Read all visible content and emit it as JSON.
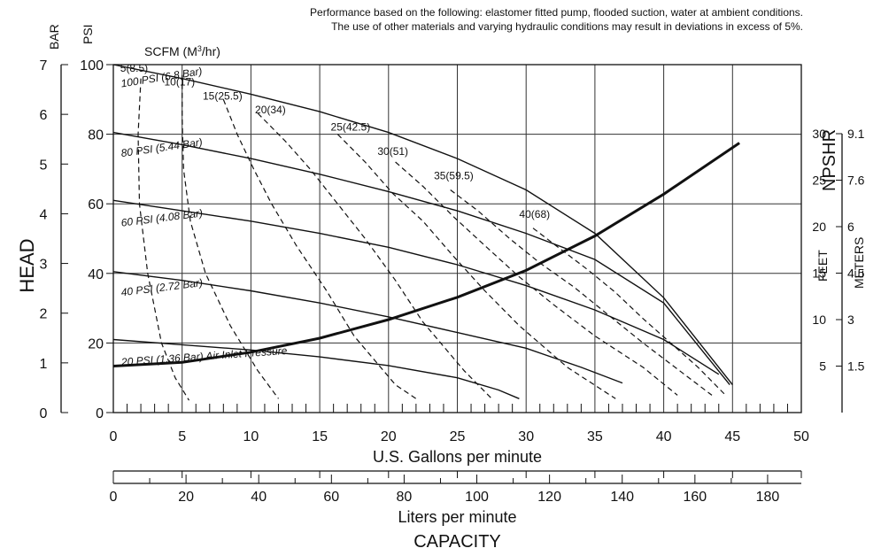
{
  "chart_data": {
    "type": "line",
    "notes": [
      "Performance based on the following: elastomer fitted pump, flooded suction, water at ambient conditions.",
      "The use of other materials and varying hydraulic conditions may result in deviations in excess of 5%."
    ],
    "x_axis": {
      "label": "U.S. Gallons per minute",
      "range": [
        0,
        50
      ],
      "ticks": [
        0,
        5,
        10,
        15,
        20,
        25,
        30,
        35,
        40,
        45,
        50
      ]
    },
    "x2_axis": {
      "label": "Liters per minute",
      "range": [
        0,
        189.27
      ],
      "ticks": [
        0,
        20,
        40,
        60,
        80,
        100,
        120,
        140,
        160,
        180
      ]
    },
    "capacity_label": "CAPACITY",
    "y_axis": {
      "label": "HEAD",
      "psi_label": "PSI",
      "bar_label": "BAR",
      "range": [
        0,
        100
      ],
      "psi_ticks": [
        0,
        20,
        40,
        60,
        80,
        100
      ],
      "bar_ticks": [
        0,
        1,
        2,
        3,
        4,
        5,
        6,
        7
      ]
    },
    "npshr_axis": {
      "label": "NPSHR",
      "feet_label": "FEET",
      "meters_label": "METERS",
      "feet_ticks": [
        "30",
        "25",
        "20",
        "15",
        "10",
        "5"
      ],
      "meter_ticks": [
        "9.1",
        "7.6",
        "6",
        "4.5",
        "3",
        "1.5"
      ]
    },
    "scfm_label": "SCFM (M",
    "scfm_label_sup": "3",
    "scfm_label_tail": "/hr)",
    "grid": true,
    "pressure_curves": [
      {
        "name": "100 PSI (6.8 Bar)",
        "points": [
          [
            0,
            100
          ],
          [
            5,
            96
          ],
          [
            10,
            91.5
          ],
          [
            15,
            86.5
          ],
          [
            20,
            80.5
          ],
          [
            25,
            73
          ],
          [
            30,
            64
          ],
          [
            35,
            51.5
          ],
          [
            40,
            33
          ],
          [
            45,
            8
          ]
        ]
      },
      {
        "name": "80 PSI (5.44 Bar)",
        "points": [
          [
            0,
            80.5
          ],
          [
            5,
            77
          ],
          [
            10,
            73
          ],
          [
            15,
            68.5
          ],
          [
            20,
            63.5
          ],
          [
            25,
            58
          ],
          [
            30,
            51.5
          ],
          [
            35,
            44
          ],
          [
            40,
            31.5
          ],
          [
            44.8,
            8
          ]
        ]
      },
      {
        "name": "60 PSI (4.08 Bar)",
        "points": [
          [
            0,
            61
          ],
          [
            5,
            58
          ],
          [
            10,
            55
          ],
          [
            15,
            51.5
          ],
          [
            20,
            47.5
          ],
          [
            25,
            42.5
          ],
          [
            30,
            36.5
          ],
          [
            35,
            29.5
          ],
          [
            40,
            21
          ],
          [
            44,
            11
          ]
        ]
      },
      {
        "name": "40 PSI (2.72 Bar)",
        "points": [
          [
            0,
            40.5
          ],
          [
            5,
            38
          ],
          [
            10,
            35
          ],
          [
            15,
            31.5
          ],
          [
            20,
            27.5
          ],
          [
            25,
            23
          ],
          [
            30,
            18.5
          ],
          [
            34,
            13
          ],
          [
            37,
            8.5
          ]
        ]
      },
      {
        "name": "20 PSI (1.36 Bar) Air Inlet Pressure",
        "points": [
          [
            0,
            21
          ],
          [
            5,
            19.5
          ],
          [
            10,
            18
          ],
          [
            15,
            16
          ],
          [
            20,
            13.5
          ],
          [
            25,
            10
          ],
          [
            28,
            6.5
          ],
          [
            29.5,
            4
          ]
        ]
      }
    ],
    "scfm_curves": [
      {
        "name": "5(8.5)",
        "points": [
          [
            2.0,
            96
          ],
          [
            1.8,
            80
          ],
          [
            1.9,
            60
          ],
          [
            2.5,
            40
          ],
          [
            3.5,
            20
          ],
          [
            4.5,
            10
          ],
          [
            5.5,
            3.5
          ]
        ]
      },
      {
        "name": "10(17)",
        "points": [
          [
            5.0,
            97
          ],
          [
            5.0,
            85
          ],
          [
            5.1,
            70
          ],
          [
            5.6,
            55
          ],
          [
            6.7,
            40
          ],
          [
            8.5,
            25
          ],
          [
            10.5,
            12
          ],
          [
            12,
            4
          ]
        ]
      },
      {
        "name": "15(25.5)",
        "points": [
          [
            8.0,
            90
          ],
          [
            9.0,
            80
          ],
          [
            10.2,
            70
          ],
          [
            11.5,
            60
          ],
          [
            13.3,
            48
          ],
          [
            15.5,
            35
          ],
          [
            17.5,
            22
          ],
          [
            20.5,
            8
          ],
          [
            22,
            4
          ]
        ]
      },
      {
        "name": "20(34)",
        "points": [
          [
            10.5,
            86
          ],
          [
            12.5,
            78
          ],
          [
            14.3,
            70
          ],
          [
            16.3,
            60
          ],
          [
            18.3,
            50
          ],
          [
            20.5,
            38
          ],
          [
            22.5,
            26
          ],
          [
            25.5,
            12
          ],
          [
            27.5,
            4
          ]
        ]
      },
      {
        "name": "25(42.5)",
        "points": [
          [
            16.3,
            80
          ],
          [
            18.3,
            72
          ],
          [
            20.3,
            63
          ],
          [
            22.5,
            55
          ],
          [
            24.7,
            45
          ],
          [
            27,
            35
          ],
          [
            29.5,
            25
          ],
          [
            33,
            13
          ],
          [
            36.5,
            4
          ]
        ]
      },
      {
        "name": "30(51)",
        "points": [
          [
            20.5,
            72
          ],
          [
            22.5,
            65
          ],
          [
            24.8,
            56
          ],
          [
            27,
            48
          ],
          [
            29.5,
            39
          ],
          [
            32,
            31
          ],
          [
            35,
            22
          ],
          [
            38.5,
            13
          ],
          [
            41,
            5
          ]
        ]
      },
      {
        "name": "35(59.5)",
        "points": [
          [
            24.5,
            64
          ],
          [
            26.5,
            58
          ],
          [
            28.8,
            50
          ],
          [
            31,
            43
          ],
          [
            33.5,
            36
          ],
          [
            36,
            28
          ],
          [
            38.5,
            20
          ],
          [
            41.5,
            11
          ],
          [
            43.5,
            5
          ]
        ]
      },
      {
        "name": "40(68)",
        "points": [
          [
            30.5,
            53
          ],
          [
            32.5,
            47
          ],
          [
            34.5,
            41
          ],
          [
            36.5,
            34.5
          ],
          [
            38.5,
            27
          ],
          [
            40.5,
            20
          ],
          [
            42.5,
            13
          ],
          [
            44.5,
            5
          ]
        ]
      }
    ],
    "npshr_curve": {
      "name": "NPSHR",
      "points": [
        [
          0,
          5
        ],
        [
          5,
          5.4
        ],
        [
          10,
          6.5
        ],
        [
          15,
          8
        ],
        [
          20,
          10
        ],
        [
          25,
          12.4
        ],
        [
          30,
          15.3
        ],
        [
          35,
          19
        ],
        [
          40,
          23.5
        ],
        [
          45.5,
          29
        ]
      ]
    },
    "scfm_label_positions": [
      [
        0.5,
        98
      ],
      [
        3.7,
        94
      ],
      [
        6.5,
        90
      ],
      [
        10.3,
        86
      ],
      [
        15.8,
        81
      ],
      [
        19.2,
        74
      ],
      [
        23.3,
        67
      ],
      [
        29.5,
        56
      ]
    ]
  }
}
